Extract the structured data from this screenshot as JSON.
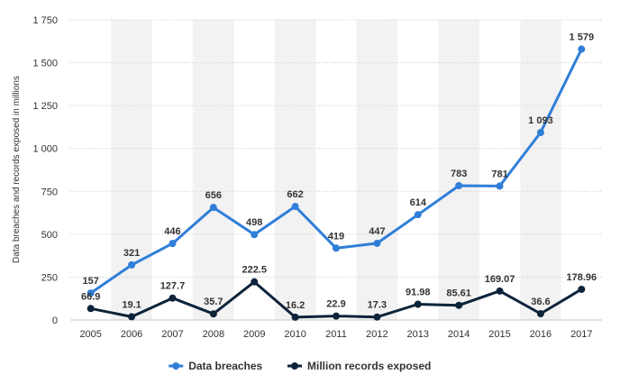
{
  "chart_data": {
    "type": "line",
    "x": [
      "2005",
      "2006",
      "2007",
      "2008",
      "2009",
      "2010",
      "2011",
      "2012",
      "2013",
      "2014",
      "2015",
      "2016",
      "2017"
    ],
    "series": [
      {
        "name": "Data breaches",
        "values": [
          157,
          321,
          446,
          656,
          498,
          662,
          419,
          447,
          614,
          783,
          781,
          1093,
          1579
        ],
        "labels": [
          "157",
          "321",
          "446",
          "656",
          "498",
          "662",
          "419",
          "447",
          "614",
          "783",
          "781",
          "1 093",
          "1 579"
        ],
        "color": "#2f7ed8"
      },
      {
        "name": "Million records exposed",
        "values": [
          66.9,
          19.1,
          127.7,
          35.7,
          222.5,
          16.2,
          22.9,
          17.3,
          91.98,
          85.61,
          169.07,
          36.6,
          178.96
        ],
        "labels": [
          "66.9",
          "19.1",
          "127.7",
          "35.7",
          "222.5",
          "16.2",
          "22.9",
          "17.3",
          "91.98",
          "85.61",
          "169.07",
          "36.6",
          "178.96"
        ],
        "color": "#0d233a"
      }
    ],
    "ylabel": "Data breaches and records exposed in millions",
    "ylim": [
      0,
      1750
    ],
    "yticks": [
      0,
      250,
      500,
      750,
      1000,
      1250,
      1500,
      1750
    ],
    "ytick_labels": [
      "0",
      "250",
      "500",
      "750",
      "1 000",
      "1 250",
      "1 500",
      "1 750"
    ],
    "grid": true,
    "legend_position": "bottom-center",
    "band_color": "#f2f2f2"
  }
}
